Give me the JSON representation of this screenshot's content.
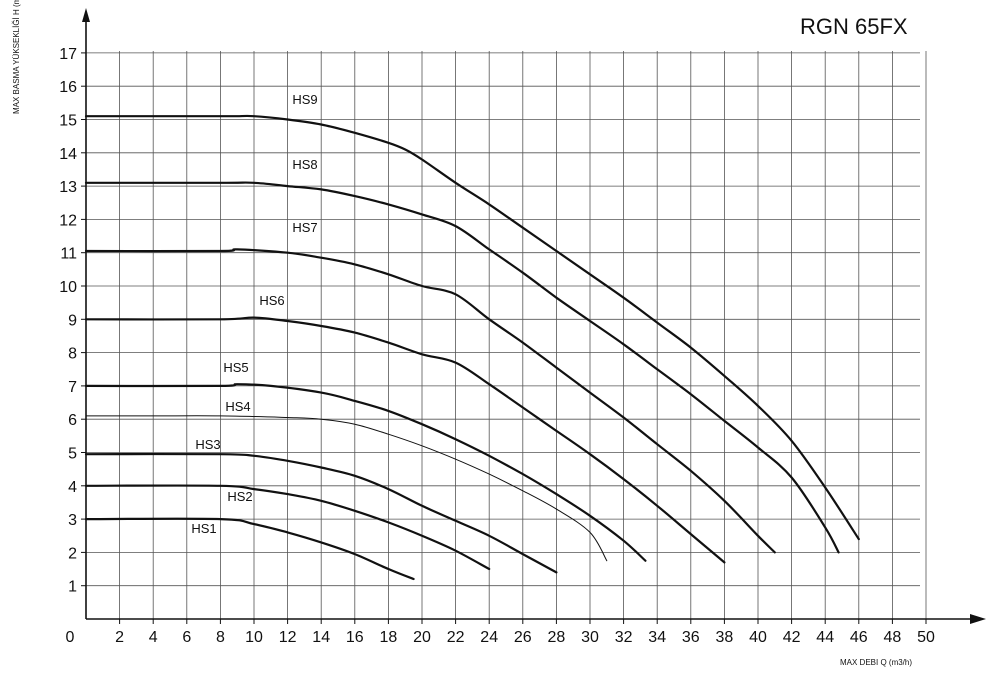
{
  "chart_data": {
    "type": "line",
    "title": "RGN 65FX",
    "xlabel": "MAX DEBI  Q (m3/h)",
    "ylabel": "MAX BASMA YÜKSEKLİĞİ H (m)",
    "xlim": [
      0,
      50
    ],
    "ylim": [
      0,
      17
    ],
    "x_ticks": [
      "0",
      "2",
      "4",
      "6",
      "8",
      "10",
      "12",
      "14",
      "16",
      "18",
      "20",
      "22",
      "24",
      "26",
      "28",
      "30",
      "32",
      "34",
      "36",
      "38",
      "40",
      "42",
      "44",
      "46",
      "48",
      "50"
    ],
    "y_ticks": [
      "1",
      "2",
      "3",
      "4",
      "5",
      "6",
      "7",
      "8",
      "9",
      "10",
      "11",
      "12",
      "13",
      "14",
      "15",
      "16",
      "17"
    ],
    "grid": true,
    "series": [
      {
        "name": "HS1",
        "x": [
          0,
          8,
          10,
          12,
          14,
          16,
          18,
          19.5
        ],
        "y": [
          3.0,
          3.0,
          2.85,
          2.6,
          2.3,
          1.95,
          1.5,
          1.2
        ]
      },
      {
        "name": "HS2",
        "x": [
          0,
          8,
          10,
          12,
          14,
          16,
          18,
          20,
          22,
          24
        ],
        "y": [
          4.0,
          4.0,
          3.9,
          3.75,
          3.55,
          3.25,
          2.9,
          2.5,
          2.05,
          1.5
        ]
      },
      {
        "name": "HS3",
        "x": [
          0,
          8,
          10,
          12,
          14,
          16,
          18,
          20,
          22,
          24,
          26,
          28
        ],
        "y": [
          4.95,
          4.95,
          4.9,
          4.75,
          4.55,
          4.3,
          3.9,
          3.4,
          2.95,
          2.5,
          1.95,
          1.4
        ]
      },
      {
        "name": "HS4",
        "x": [
          0,
          4,
          8,
          12,
          14,
          16,
          18,
          20,
          22,
          24,
          26,
          28,
          30,
          31
        ],
        "y": [
          6.1,
          6.1,
          6.1,
          6.05,
          6.0,
          5.85,
          5.55,
          5.2,
          4.8,
          4.35,
          3.85,
          3.3,
          2.6,
          1.75
        ]
      },
      {
        "name": "HS5",
        "x": [
          0,
          8,
          9,
          11,
          14,
          16,
          18,
          20,
          22,
          24,
          26,
          28,
          30,
          32,
          33.3
        ],
        "y": [
          7.0,
          7.0,
          7.05,
          7.0,
          6.8,
          6.55,
          6.25,
          5.85,
          5.4,
          4.9,
          4.35,
          3.75,
          3.1,
          2.35,
          1.75
        ]
      },
      {
        "name": "HS6",
        "x": [
          0,
          8,
          10,
          12,
          14,
          16,
          18,
          20,
          22,
          24,
          26,
          28,
          30,
          32,
          34,
          36,
          38
        ],
        "y": [
          9.0,
          9.0,
          9.05,
          8.95,
          8.8,
          8.6,
          8.3,
          7.95,
          7.7,
          7.05,
          6.35,
          5.65,
          4.95,
          4.2,
          3.4,
          2.55,
          1.7
        ]
      },
      {
        "name": "HS7",
        "x": [
          0,
          8,
          9,
          12,
          14,
          16,
          18,
          20,
          22,
          24,
          26,
          28,
          30,
          32,
          34,
          36,
          38,
          40,
          41
        ],
        "y": [
          11.05,
          11.05,
          11.1,
          11.0,
          10.85,
          10.65,
          10.35,
          10.0,
          9.75,
          9.0,
          8.3,
          7.55,
          6.8,
          6.05,
          5.25,
          4.45,
          3.55,
          2.5,
          2.0
        ]
      },
      {
        "name": "HS8",
        "x": [
          0,
          8,
          10,
          12,
          14,
          16,
          18,
          20,
          22,
          24,
          26,
          28,
          30,
          32,
          34,
          36,
          38,
          40,
          42,
          44,
          44.8
        ],
        "y": [
          13.1,
          13.1,
          13.1,
          13.0,
          12.9,
          12.7,
          12.45,
          12.15,
          11.8,
          11.1,
          10.4,
          9.65,
          8.95,
          8.25,
          7.5,
          6.75,
          5.95,
          5.15,
          4.25,
          2.75,
          2.0
        ]
      },
      {
        "name": "HS9",
        "x": [
          0,
          8,
          9,
          10,
          12,
          14,
          16,
          18,
          19,
          20,
          22,
          24,
          26,
          28,
          30,
          32,
          34,
          36,
          38,
          40,
          42,
          44,
          46
        ],
        "y": [
          15.1,
          15.1,
          15.1,
          15.1,
          15.0,
          14.85,
          14.6,
          14.3,
          14.1,
          13.8,
          13.1,
          12.45,
          11.75,
          11.05,
          10.35,
          9.65,
          8.9,
          8.15,
          7.3,
          6.4,
          5.35,
          3.95,
          2.4
        ]
      }
    ]
  }
}
